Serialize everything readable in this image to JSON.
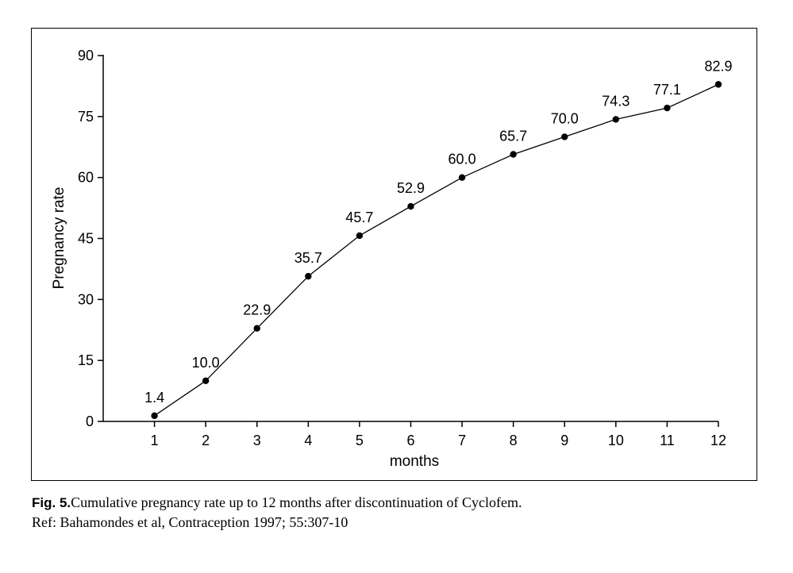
{
  "chart_data": {
    "type": "line",
    "title": "",
    "xlabel": "months",
    "ylabel": "Pregnancy rate",
    "x": [
      1,
      2,
      3,
      4,
      5,
      6,
      7,
      8,
      9,
      10,
      11,
      12
    ],
    "series": [
      {
        "values": [
          1.4,
          10.0,
          22.9,
          35.7,
          45.7,
          52.9,
          60.0,
          65.7,
          70.0,
          74.3,
          77.1,
          82.9
        ]
      }
    ],
    "data_labels": [
      "1.4",
      "10.0",
      "22.9",
      "35.7",
      "45.7",
      "52.9",
      "60.0",
      "65.7",
      "70.0",
      "74.3",
      "77.1",
      "82.9"
    ],
    "xlim": [
      0,
      12
    ],
    "ylim": [
      0,
      90
    ],
    "y_ticks": [
      0,
      15,
      30,
      45,
      60,
      75,
      90
    ],
    "x_ticks": [
      1,
      2,
      3,
      4,
      5,
      6,
      7,
      8,
      9,
      10,
      11,
      12
    ],
    "grid": false,
    "legend": "none",
    "line_color": "#000000",
    "marker": "filled-circle"
  },
  "caption": {
    "fig_label": "Fig. 5.",
    "text": "Cumulative pregnancy rate up to 12 months after discontinuation of Cyclofem.",
    "ref": "Ref: Bahamondes et al, Contraception 1997; 55:307-10"
  }
}
